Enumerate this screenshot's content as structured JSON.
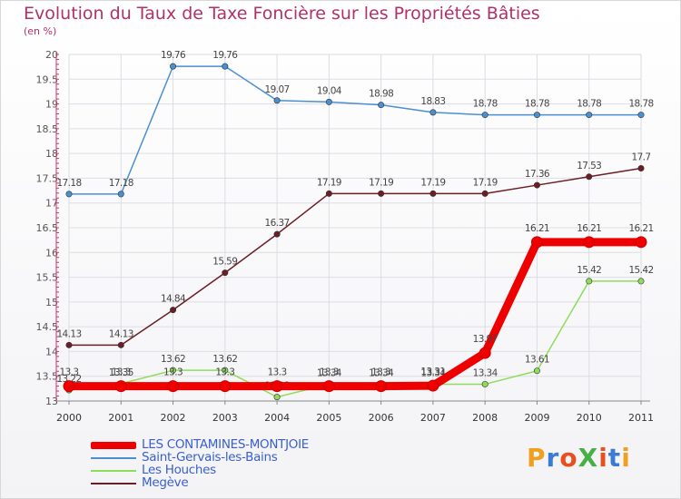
{
  "title": "Evolution du Taux de Taxe Foncière sur les Propriétés Bâties",
  "subtitle": "(en %)",
  "logo": {
    "text": "ProXiti",
    "colors": [
      "#f0a020",
      "#3a7bd5",
      "#e8501f",
      "#49b048",
      "#e8501f",
      "#3a7bd5",
      "#f0a020"
    ]
  },
  "chart_data": {
    "type": "line",
    "x": [
      "2000",
      "2001",
      "2002",
      "2003",
      "2004",
      "2005",
      "2006",
      "2007",
      "2008",
      "2009",
      "2010",
      "2011"
    ],
    "ylim": [
      13,
      20
    ],
    "yticks": [
      "13",
      "13.5",
      "14",
      "14.5",
      "15",
      "15.5",
      "16",
      "16.5",
      "17",
      "17.5",
      "18",
      "18.5",
      "19",
      "19.5",
      "20"
    ],
    "grid": true,
    "legend_position": "bottom-left",
    "series": [
      {
        "name": "Saint-Gervais-les-Bains",
        "color": "#4a8fd0",
        "values": [
          17.18,
          17.18,
          19.76,
          19.76,
          19.07,
          19.04,
          18.98,
          18.83,
          18.78,
          18.78,
          18.78,
          18.78
        ],
        "labels": [
          "17.18",
          "17.18",
          "19.76",
          "19.76",
          "19.07",
          "19.04",
          "18.98",
          "18.83",
          "18.78",
          "18.78",
          "18.78",
          "18.78"
        ]
      },
      {
        "name": "Megève",
        "color": "#6b1e25",
        "values": [
          14.13,
          14.13,
          14.84,
          15.59,
          16.37,
          17.19,
          17.19,
          17.19,
          17.19,
          17.36,
          17.53,
          17.7
        ],
        "labels": [
          "14.13",
          "14.13",
          "14.84",
          "15.59",
          "16.37",
          "17.19",
          "17.19",
          "17.19",
          "17.19",
          "17.36",
          "17.53",
          "17.7"
        ]
      },
      {
        "name": "Les Houches",
        "color": "#8fdc5a",
        "values": [
          13.22,
          13.35,
          13.62,
          13.62,
          13.08,
          13.34,
          13.34,
          13.34,
          13.34,
          13.61,
          15.42,
          15.42
        ],
        "labels": [
          "13.22",
          "13.35",
          "13.62",
          "13.62",
          "13.08",
          "13.34",
          "13.34",
          "13.34",
          "13.34",
          "13.61",
          "15.42",
          "15.42"
        ]
      },
      {
        "name": "LES CONTAMINES-MONTJOIE",
        "color": "#ee0000",
        "values": [
          13.3,
          13.3,
          13.3,
          13.3,
          13.3,
          13.3,
          13.3,
          13.31,
          13.97,
          16.21,
          16.21,
          16.21
        ],
        "labels": [
          "13.3",
          "13.3",
          "13.3",
          "13.3",
          "13.3",
          "13.3",
          "13.3",
          "13.31",
          "13.97",
          "16.21",
          "16.21",
          "16.21"
        ]
      }
    ],
    "legend": [
      {
        "name": "LES CONTAMINES-MONTJOIE",
        "color": "#ee0000"
      },
      {
        "name": "Saint-Gervais-les-Bains",
        "color": "#4a8fd0"
      },
      {
        "name": "Les Houches",
        "color": "#8fdc5a"
      },
      {
        "name": "Megève",
        "color": "#6b1e25"
      }
    ]
  }
}
